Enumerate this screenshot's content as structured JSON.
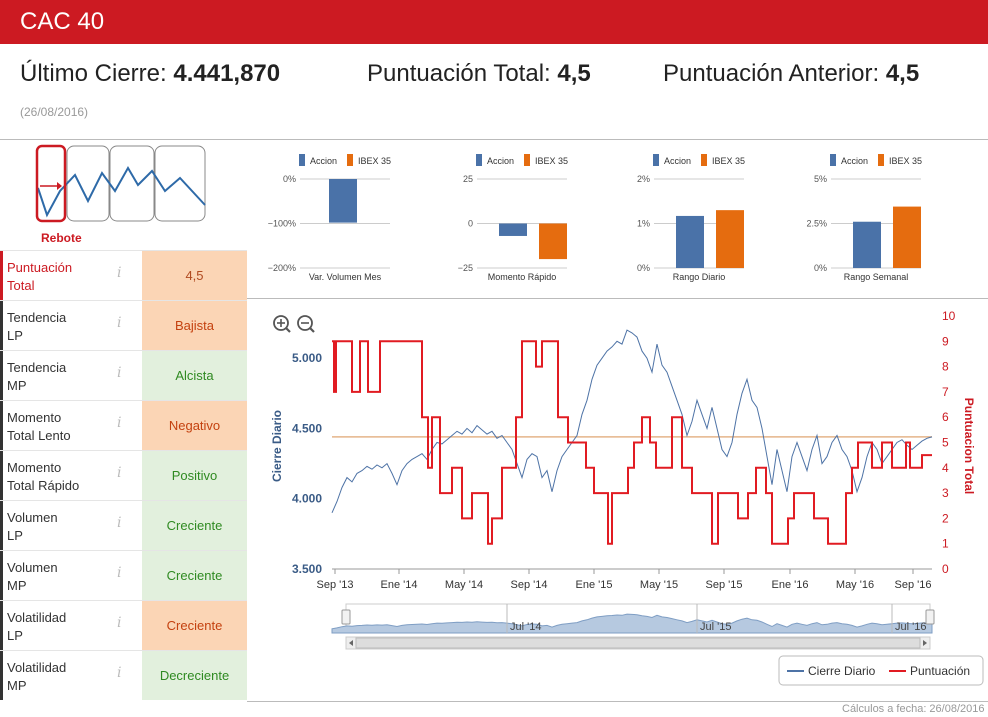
{
  "header": {
    "title": "CAC 40"
  },
  "summary": {
    "last_close_label": "Último Cierre:",
    "last_close_value": "4.441,870",
    "total_score_label": "Puntuación Total:",
    "total_score_value": "4,5",
    "prev_score_label": "Puntuación Anterior:",
    "prev_score_value": "4,5",
    "date": "(26/08/2016)"
  },
  "pattern": {
    "label": "Rebote"
  },
  "indicators": [
    {
      "label": "Puntuación\nTotal",
      "value": "4,5",
      "tone": "peach",
      "highlight": true
    },
    {
      "label": "Tendencia\nLP",
      "value": "Bajista",
      "tone": "orange"
    },
    {
      "label": "Tendencia\nMP",
      "value": "Alcista",
      "tone": "green"
    },
    {
      "label": "Momento\nTotal Lento",
      "value": "Negativo",
      "tone": "orange"
    },
    {
      "label": "Momento\nTotal Rápido",
      "value": "Positivo",
      "tone": "green"
    },
    {
      "label": "Volumen\nLP",
      "value": "Creciente",
      "tone": "green"
    },
    {
      "label": "Volumen\nMP",
      "value": "Creciente",
      "tone": "green"
    },
    {
      "label": "Volatilidad\nLP",
      "value": "Creciente",
      "tone": "orange"
    },
    {
      "label": "Volatilidad\nMP",
      "value": "Decreciente",
      "tone": "green"
    }
  ],
  "info_glyph": "i",
  "colors": {
    "brand": "#cc1a22",
    "accion": "#4a72a8",
    "ibex": "#e56c0f",
    "orange_bg": "#fbd5b5",
    "green_bg": "#e2f0dd"
  },
  "chart_data": [
    {
      "type": "bar",
      "title": "Var. Volumen Mes",
      "legend": [
        "Accion",
        "IBEX 35"
      ],
      "legend_placement": "top",
      "ticks": [
        "0%",
        "−100%",
        "−200%"
      ],
      "ylim": [
        -200,
        0
      ],
      "series": [
        {
          "name": "Accion",
          "values": [
            -98
          ]
        }
      ]
    },
    {
      "type": "bar",
      "title": "Momento Rápido",
      "legend": [
        "Accion",
        "IBEX 35"
      ],
      "legend_placement": "top",
      "ticks": [
        "25",
        "0",
        "−25"
      ],
      "ylim": [
        -25,
        25
      ],
      "series": [
        {
          "name": "Accion",
          "values": [
            -7
          ]
        },
        {
          "name": "IBEX 35",
          "values": [
            -20
          ]
        }
      ]
    },
    {
      "type": "bar",
      "title": "Rango Diario",
      "legend": [
        "Accion",
        "IBEX 35"
      ],
      "legend_placement": "top",
      "ticks": [
        "2%",
        "1%",
        "0%"
      ],
      "ylim": [
        0,
        2
      ],
      "series": [
        {
          "name": "Accion",
          "values": [
            1.17
          ]
        },
        {
          "name": "IBEX 35",
          "values": [
            1.3
          ]
        }
      ]
    },
    {
      "type": "bar",
      "title": "Rango Semanal",
      "legend": [
        "Accion",
        "IBEX 35"
      ],
      "legend_placement": "top",
      "ticks": [
        "5%",
        "2.5%",
        "0%"
      ],
      "ylim": [
        0,
        5
      ],
      "series": [
        {
          "name": "Accion",
          "values": [
            2.6
          ]
        },
        {
          "name": "IBEX 35",
          "values": [
            3.45
          ]
        }
      ]
    },
    {
      "type": "line",
      "title": "",
      "ylabel_left": "Cierre Diario",
      "ylabel_right": "Puntuacion Total",
      "ylim_left": [
        3500,
        5300
      ],
      "ylim_right": [
        0,
        10
      ],
      "left_ticks": [
        "5.000",
        "4.500",
        "4.000",
        "3.500"
      ],
      "right_ticks": [
        "10",
        "9",
        "8",
        "7",
        "6",
        "5",
        "4",
        "3",
        "2",
        "1",
        "0"
      ],
      "x_ticks": [
        "Sep '13",
        "Ene '14",
        "May '14",
        "Sep '14",
        "Ene '15",
        "May '15",
        "Sep '15",
        "Ene '16",
        "May '16",
        "Sep '16"
      ],
      "navigator_labels": [
        "Jul '14",
        "Jul '15",
        "Jul '16"
      ],
      "reference_line": 4440,
      "legend": [
        "Cierre Diario",
        "Puntuación"
      ],
      "series": [
        {
          "name": "Cierre Diario",
          "x": [
            0,
            5,
            10,
            15,
            20,
            25,
            30,
            35,
            40,
            45,
            50,
            55,
            60,
            65,
            70,
            75,
            80,
            85,
            90,
            95,
            100,
            105,
            110,
            115,
            120,
            125,
            130,
            135,
            140,
            145,
            150,
            155,
            160,
            165,
            170,
            175,
            180,
            185,
            190,
            195,
            200,
            205,
            210,
            215,
            220,
            225,
            230,
            235,
            240,
            245,
            250,
            255,
            260,
            265,
            270,
            275,
            280,
            285,
            290,
            295,
            300,
            305,
            310,
            315,
            320,
            325,
            330,
            335,
            340,
            345,
            350,
            355,
            360,
            365,
            370,
            375,
            380,
            385,
            390,
            395,
            400,
            405,
            410,
            415,
            420,
            425,
            430,
            435,
            440,
            445,
            450,
            455,
            460,
            465,
            470,
            475,
            480,
            485,
            490,
            495,
            500,
            505,
            510,
            515,
            520,
            525,
            530,
            535,
            540,
            545,
            550,
            555,
            560,
            565,
            570,
            575,
            580,
            585,
            590,
            595,
            600
          ],
          "values": [
            3900,
            3980,
            4080,
            4150,
            4120,
            4180,
            4200,
            4230,
            4210,
            4240,
            4220,
            4250,
            4180,
            4100,
            4200,
            4250,
            4280,
            4300,
            4320,
            4280,
            4350,
            4400,
            4390,
            4420,
            4450,
            4480,
            4460,
            4500,
            4470,
            4520,
            4490,
            4460,
            4480,
            4430,
            4450,
            4400,
            4350,
            4250,
            4150,
            4280,
            4320,
            4300,
            4150,
            4200,
            4050,
            4200,
            4300,
            4350,
            4400,
            4450,
            4600,
            4700,
            4850,
            4950,
            5000,
            5050,
            5080,
            5120,
            5100,
            5200,
            5180,
            5150,
            5050,
            5000,
            4900,
            5100,
            4950,
            4900,
            4800,
            4700,
            4600,
            4450,
            4550,
            4700,
            4600,
            4500,
            4650,
            4500,
            4350,
            4300,
            4400,
            4600,
            4750,
            4850,
            4700,
            4650,
            4500,
            4300,
            4100,
            4350,
            4200,
            4050,
            4300,
            4400,
            4300,
            4200,
            4350,
            4450,
            4250,
            4300,
            4400,
            4450,
            4350,
            4300,
            4200,
            4050,
            4150,
            4300,
            4400,
            4350,
            4250,
            4300,
            4350,
            4400,
            4420,
            4380,
            4350,
            4380,
            4410,
            4430,
            4440
          ]
        },
        {
          "name": "Puntuación",
          "x": [
            0,
            2,
            2,
            4,
            4,
            20,
            20,
            28,
            28,
            36,
            36,
            48,
            48,
            90,
            90,
            96,
            96,
            100,
            100,
            108,
            108,
            120,
            120,
            130,
            130,
            140,
            140,
            156,
            156,
            160,
            160,
            170,
            170,
            184,
            184,
            190,
            190,
            204,
            204,
            210,
            210,
            226,
            226,
            236,
            236,
            254,
            254,
            262,
            262,
            276,
            276,
            280,
            280,
            296,
            296,
            302,
            302,
            310,
            310,
            318,
            318,
            324,
            324,
            340,
            340,
            350,
            350,
            360,
            360,
            380,
            380,
            386,
            386,
            406,
            406,
            416,
            416,
            424,
            424,
            434,
            434,
            440,
            440,
            456,
            456,
            462,
            462,
            482,
            482,
            496,
            496,
            514,
            514,
            520,
            520,
            526,
            526,
            540,
            540,
            550,
            550,
            560,
            560,
            574,
            574,
            578,
            578,
            590,
            590,
            600
          ],
          "values": [
            9,
            9,
            7,
            7,
            9,
            9,
            7,
            7,
            9,
            9,
            7,
            7,
            9,
            9,
            6,
            6,
            4,
            4,
            6,
            6,
            3,
            3,
            4,
            4,
            2,
            2,
            3,
            3,
            1,
            1,
            2,
            2,
            4,
            4,
            6,
            6,
            9,
            9,
            8,
            8,
            9,
            9,
            6,
            6,
            5,
            5,
            4,
            4,
            3,
            3,
            1,
            1,
            3,
            3,
            4,
            4,
            5,
            5,
            6,
            6,
            5,
            5,
            4,
            4,
            6,
            6,
            4,
            4,
            3,
            3,
            1,
            1,
            3,
            3,
            2,
            2,
            3,
            3,
            4,
            4,
            3,
            3,
            1,
            1,
            2,
            2,
            3,
            3,
            2,
            2,
            1,
            1,
            3,
            3,
            4,
            4,
            5,
            5,
            4,
            4,
            5,
            5,
            4,
            4,
            5,
            5,
            4,
            4,
            4.5,
            4.5
          ]
        }
      ]
    }
  ]
}
